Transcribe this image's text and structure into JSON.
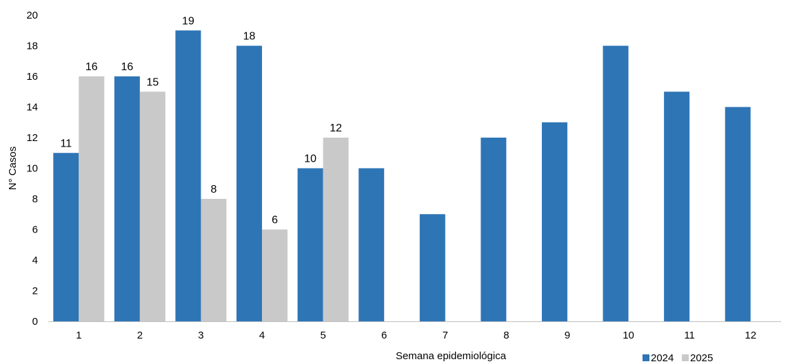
{
  "chart_data": {
    "type": "bar",
    "title": "",
    "xlabel": "Semana epidemiológica",
    "ylabel": "N° Casos",
    "ylim": [
      0,
      20
    ],
    "yticks": [
      0,
      2,
      4,
      6,
      8,
      10,
      12,
      14,
      16,
      18,
      20
    ],
    "grid": false,
    "legend_position": "bottom-right",
    "categories": [
      "1",
      "2",
      "3",
      "4",
      "5",
      "6",
      "7",
      "8",
      "9",
      "10",
      "11",
      "12"
    ],
    "series": [
      {
        "name": "2024",
        "color": "#2E75B6",
        "values": [
          11,
          16,
          19,
          18,
          10,
          10,
          7,
          12,
          13,
          18,
          15,
          14
        ],
        "labels": [
          "11",
          "16",
          "19",
          "18",
          "10",
          null,
          null,
          null,
          null,
          null,
          null,
          null
        ]
      },
      {
        "name": "2025",
        "color": "#C9C9C9",
        "values": [
          16,
          15,
          8,
          6,
          12,
          null,
          null,
          null,
          null,
          null,
          null,
          null
        ],
        "labels": [
          "16",
          "15",
          "8",
          "6",
          "12",
          null,
          null,
          null,
          null,
          null,
          null,
          null
        ]
      }
    ]
  }
}
